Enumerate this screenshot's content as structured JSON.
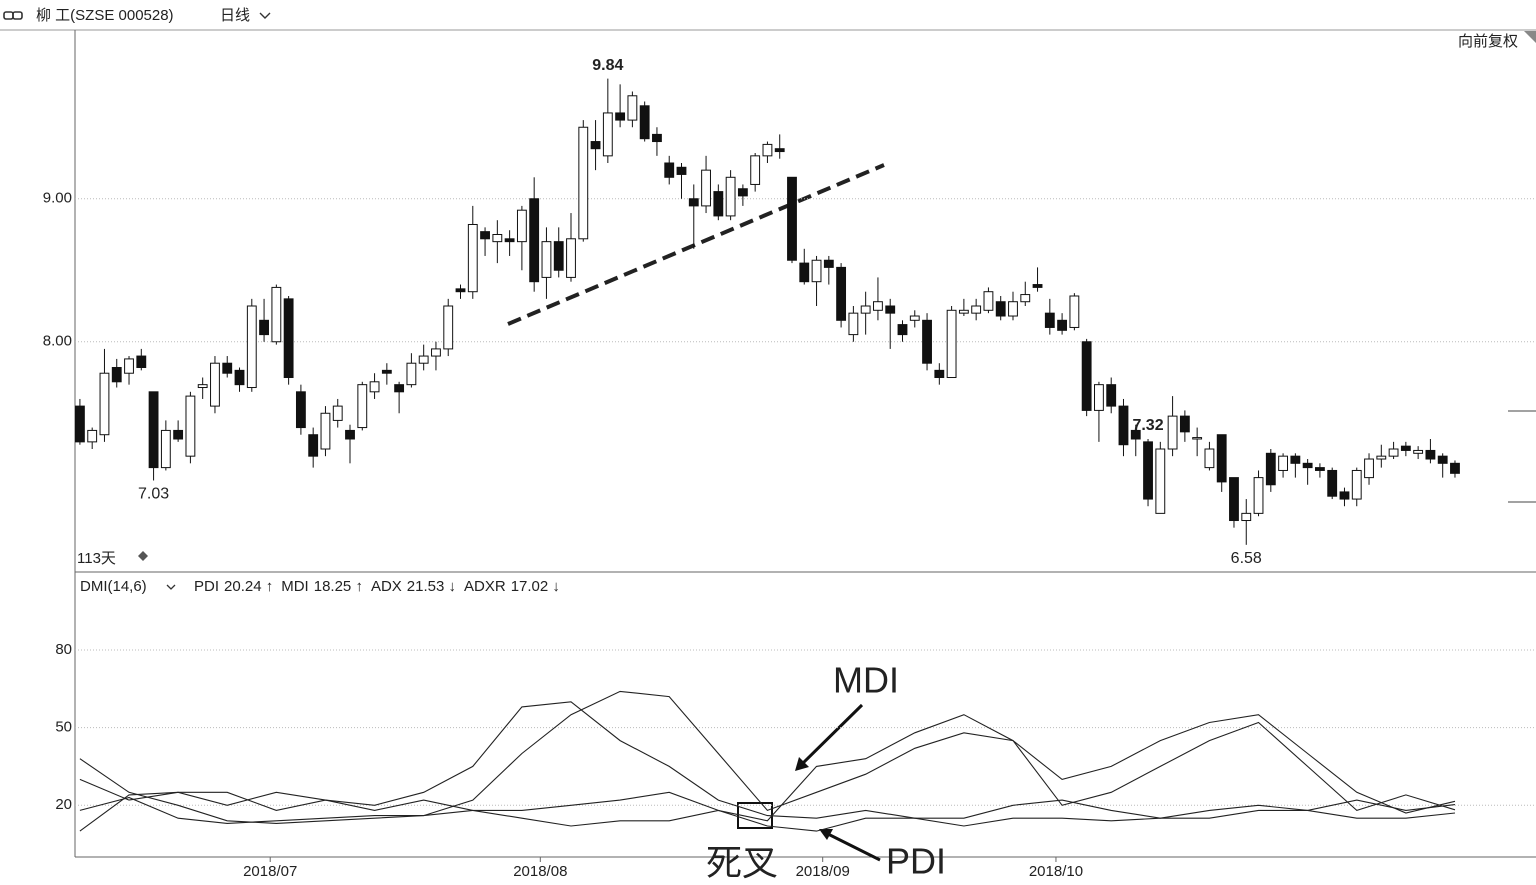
{
  "header": {
    "symbol": "柳 工(SZSE 000528)",
    "period": "日线",
    "adjust": "向前复权",
    "days": "113天"
  },
  "chart_data": [
    {
      "type": "candlestick",
      "xlim": [
        -0.4,
        118.6
      ],
      "ylim": [
        6.39,
        10.18
      ],
      "yticks": [
        {
          "value": 9,
          "label": "9.00"
        },
        {
          "value": 8,
          "label": "8.00"
        }
      ],
      "grid": true,
      "up_color": "#ffffff",
      "down_color": "#111111",
      "open": [
        7.55,
        7.3,
        7.35,
        7.82,
        7.78,
        7.9,
        7.65,
        7.12,
        7.38,
        7.2,
        7.68,
        7.55,
        7.85,
        7.8,
        7.68,
        8.15,
        8.0,
        8.3,
        7.65,
        7.35,
        7.25,
        7.45,
        7.38,
        7.4,
        7.65,
        7.8,
        7.7,
        7.7,
        7.85,
        7.9,
        7.95,
        8.37,
        8.35,
        8.77,
        8.7,
        8.72,
        8.7,
        9.0,
        8.45,
        8.7,
        8.45,
        8.72,
        9.4,
        9.3,
        9.6,
        9.55,
        9.65,
        9.45,
        9.25,
        9.22,
        9.0,
        8.95,
        9.05,
        8.88,
        9.07,
        9.1,
        9.3,
        9.35,
        9.15,
        8.55,
        8.42,
        8.57,
        8.52,
        8.05,
        8.2,
        8.22,
        8.25,
        8.12,
        8.15,
        8.15,
        7.8,
        7.75,
        8.2,
        8.2,
        8.22,
        8.28,
        8.18,
        8.28,
        8.4,
        8.2,
        8.15,
        8.1,
        8.0,
        7.52,
        7.7,
        7.55,
        7.38,
        7.3,
        6.8,
        7.25,
        7.48,
        7.32,
        7.12,
        7.35,
        7.05,
        6.75,
        6.8,
        7.22,
        7.1,
        7.2,
        7.15,
        7.12,
        7.1,
        6.95,
        6.9,
        7.05,
        7.18,
        7.2,
        7.27,
        7.22,
        7.24,
        7.2,
        7.15
      ],
      "high": [
        7.6,
        7.4,
        7.95,
        7.88,
        7.9,
        7.95,
        7.65,
        7.45,
        7.45,
        7.65,
        7.75,
        7.9,
        7.9,
        7.82,
        8.3,
        8.3,
        8.4,
        8.32,
        7.7,
        7.4,
        7.55,
        7.6,
        7.42,
        7.72,
        7.78,
        7.85,
        7.72,
        7.92,
        7.98,
        8.0,
        8.3,
        8.4,
        8.95,
        8.8,
        8.85,
        8.78,
        8.95,
        9.15,
        8.8,
        8.8,
        8.9,
        9.55,
        9.55,
        9.84,
        9.8,
        9.75,
        9.68,
        9.5,
        9.3,
        9.25,
        9.1,
        9.3,
        9.1,
        9.2,
        9.1,
        9.32,
        9.4,
        9.45,
        9.15,
        8.65,
        8.6,
        8.6,
        8.55,
        8.25,
        8.35,
        8.45,
        8.3,
        8.15,
        8.22,
        8.2,
        7.85,
        8.25,
        8.3,
        8.3,
        8.38,
        8.32,
        8.35,
        8.42,
        8.52,
        8.3,
        8.2,
        8.34,
        8.02,
        7.72,
        7.75,
        7.6,
        7.42,
        7.32,
        7.3,
        7.62,
        7.52,
        7.4,
        7.3,
        7.35,
        7.05,
        6.9,
        7.1,
        7.25,
        7.22,
        7.22,
        7.18,
        7.15,
        7.12,
        6.98,
        7.12,
        7.22,
        7.28,
        7.3,
        7.3,
        7.27,
        7.32,
        7.22,
        7.17
      ],
      "low": [
        7.28,
        7.25,
        7.3,
        7.68,
        7.7,
        7.8,
        7.03,
        7.1,
        7.3,
        7.15,
        7.6,
        7.5,
        7.75,
        7.65,
        7.65,
        8.0,
        7.98,
        7.7,
        7.35,
        7.12,
        7.2,
        7.4,
        7.15,
        7.38,
        7.6,
        7.7,
        7.5,
        7.68,
        7.8,
        7.8,
        7.9,
        8.3,
        8.3,
        8.6,
        8.55,
        8.6,
        8.5,
        8.35,
        8.3,
        8.45,
        8.42,
        8.7,
        9.2,
        9.25,
        9.5,
        9.5,
        9.4,
        9.3,
        9.1,
        9.0,
        8.65,
        8.9,
        8.85,
        8.85,
        8.95,
        9.05,
        9.25,
        9.28,
        8.55,
        8.4,
        8.25,
        8.4,
        8.1,
        8.0,
        8.05,
        8.15,
        7.95,
        8.0,
        8.1,
        7.8,
        7.7,
        7.75,
        8.18,
        8.15,
        8.2,
        8.15,
        8.15,
        8.25,
        8.35,
        8.05,
        8.05,
        8.08,
        7.48,
        7.3,
        7.5,
        7.2,
        7.2,
        6.85,
        6.8,
        7.2,
        7.3,
        7.2,
        7.1,
        6.95,
        6.7,
        6.58,
        6.78,
        6.95,
        7.05,
        7.05,
        7.0,
        7.05,
        6.9,
        6.85,
        6.85,
        7.0,
        7.12,
        7.18,
        7.2,
        7.18,
        7.15,
        7.05,
        7.05
      ],
      "close": [
        7.3,
        7.38,
        7.78,
        7.72,
        7.88,
        7.82,
        7.12,
        7.38,
        7.32,
        7.62,
        7.7,
        7.85,
        7.78,
        7.7,
        8.25,
        8.05,
        8.38,
        7.75,
        7.4,
        7.2,
        7.5,
        7.55,
        7.32,
        7.7,
        7.72,
        7.78,
        7.65,
        7.85,
        7.9,
        7.95,
        8.25,
        8.35,
        8.82,
        8.72,
        8.75,
        8.7,
        8.92,
        8.42,
        8.7,
        8.5,
        8.72,
        9.5,
        9.35,
        9.6,
        9.55,
        9.72,
        9.42,
        9.4,
        9.15,
        9.17,
        8.95,
        9.2,
        8.88,
        9.15,
        9.02,
        9.3,
        9.38,
        9.33,
        8.57,
        8.42,
        8.57,
        8.52,
        8.15,
        8.2,
        8.25,
        8.28,
        8.2,
        8.05,
        8.18,
        7.85,
        7.75,
        8.22,
        8.22,
        8.25,
        8.35,
        8.18,
        8.28,
        8.33,
        8.38,
        8.1,
        8.08,
        8.32,
        7.52,
        7.7,
        7.55,
        7.28,
        7.32,
        6.9,
        7.25,
        7.48,
        7.37,
        7.33,
        7.25,
        7.02,
        6.75,
        6.8,
        7.05,
        7.0,
        7.2,
        7.15,
        7.12,
        7.1,
        6.92,
        6.9,
        7.1,
        7.18,
        7.2,
        7.25,
        7.24,
        7.24,
        7.18,
        7.15,
        7.08
      ],
      "high_marks": [
        {
          "value": 9.84,
          "label": "9.84"
        },
        {
          "value": 7.32,
          "label": "7.32"
        }
      ],
      "low_marks": [
        {
          "value": 7.03,
          "label": "7.03"
        },
        {
          "value": 6.58,
          "label": "6.58"
        }
      ]
    },
    {
      "type": "line",
      "title": "DMI(14,6)",
      "xlim": [
        -0.4,
        118.6
      ],
      "ylim": [
        0,
        109
      ],
      "yticks": [
        20,
        50,
        80
      ],
      "grid": true,
      "x": [
        0,
        4,
        8,
        12,
        16,
        20,
        24,
        28,
        32,
        36,
        40,
        44,
        48,
        52,
        56,
        60,
        64,
        68,
        72,
        76,
        80,
        84,
        88,
        92,
        96,
        100,
        104,
        108,
        112
      ],
      "xticks": [
        {
          "value": 15.5,
          "label": "2018/07"
        },
        {
          "value": 37.5,
          "label": "2018/08"
        },
        {
          "value": 60.5,
          "label": "2018/09"
        },
        {
          "value": 79.5,
          "label": "2018/10"
        }
      ],
      "series": [
        {
          "name": "PDI",
          "readout": "20.24 ↑",
          "color": "#222222",
          "values": [
            30,
            22,
            25,
            25,
            18,
            22,
            20,
            25,
            35,
            58,
            60,
            45,
            35,
            22,
            16,
            15,
            18,
            15,
            12,
            15,
            15,
            14,
            15,
            18,
            20,
            18,
            22,
            18,
            20.24
          ]
        },
        {
          "name": "MDI",
          "readout": "18.25 ↑",
          "color": "#222222",
          "values": [
            10,
            24,
            25,
            20,
            25,
            22,
            18,
            22,
            18,
            15,
            12,
            14,
            14,
            18,
            14,
            35,
            38,
            48,
            55,
            45,
            20,
            25,
            35,
            45,
            52,
            35,
            18,
            24,
            18.25
          ]
        },
        {
          "name": "ADX",
          "readout": "21.53 ↓",
          "color": "#222222",
          "values": [
            38,
            25,
            20,
            14,
            13,
            14,
            15,
            16,
            22,
            40,
            55,
            64,
            62,
            40,
            18,
            25,
            32,
            42,
            48,
            45,
            30,
            35,
            45,
            52,
            55,
            40,
            25,
            17,
            21.53
          ]
        },
        {
          "name": "ADXR",
          "readout": "17.02 ↓",
          "color": "#222222",
          "values": [
            18,
            23,
            15,
            13,
            14,
            15,
            16,
            16,
            18,
            18,
            20,
            22,
            25,
            18,
            12,
            10,
            15,
            15,
            15,
            20,
            22,
            18,
            15,
            15,
            18,
            18,
            15,
            15,
            17.02
          ]
        }
      ],
      "annotations": {
        "mdi": "MDI",
        "pdi": "PDI",
        "cross": "死叉"
      }
    }
  ]
}
